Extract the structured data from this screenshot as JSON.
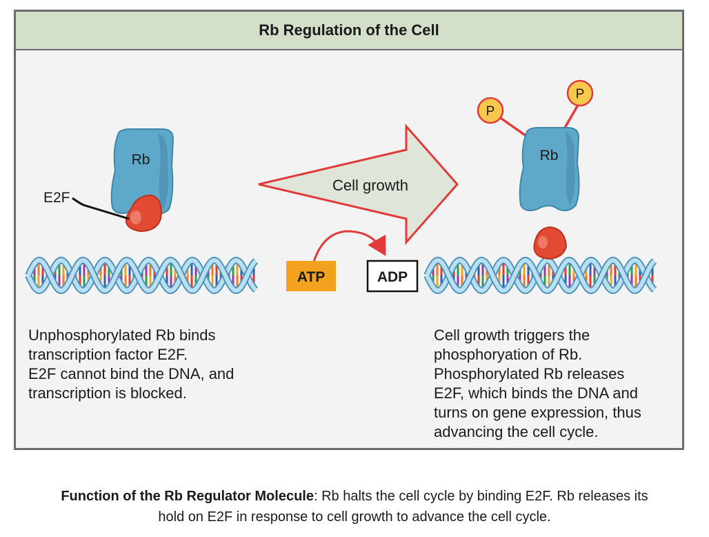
{
  "figure": {
    "title": "Rb Regulation of the Cell",
    "labels": {
      "rb_left": "Rb",
      "e2f": "E2F",
      "cell_growth": "Cell growth",
      "atp": "ATP",
      "adp": "ADP",
      "rb_right": "Rb",
      "phosphate_1": "P",
      "phosphate_2": "P"
    },
    "left_description": [
      "Unphosphorylated Rb binds",
      "transcription factor E2F.",
      "E2F cannot bind the DNA, and",
      "transcription is blocked."
    ],
    "right_description": [
      "Cell growth triggers the",
      "phosphoryation of Rb.",
      "Phosphorylated Rb releases",
      "E2F, which binds the DNA and",
      "turns on gene expression, thus",
      "advancing the cell cycle."
    ],
    "colors": {
      "title_bar": "#d3dfc9",
      "panel": "#f3f3f3",
      "rb_protein": "#5ea9c9",
      "e2f_protein": "#e34a33",
      "phosphate": "#f6c84e",
      "atp_box": "#f3a11f",
      "arrow_fill": "#dfe5d8",
      "arrow_stroke": "#e23a3a"
    }
  },
  "caption": {
    "bold": "Function of the Rb Regulator Molecule",
    "rest_line1": ": Rb halts the cell cycle by binding E2F. Rb releases its",
    "line2": "hold on E2F in response to cell growth to advance the cell cycle."
  }
}
